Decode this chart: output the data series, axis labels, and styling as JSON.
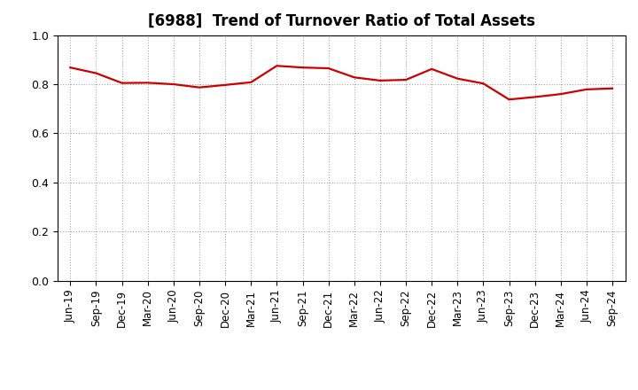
{
  "title": "[6988]  Trend of Turnover Ratio of Total Assets",
  "x_labels": [
    "Jun-19",
    "Sep-19",
    "Dec-19",
    "Mar-20",
    "Jun-20",
    "Sep-20",
    "Dec-20",
    "Mar-21",
    "Jun-21",
    "Sep-21",
    "Dec-21",
    "Mar-22",
    "Jun-22",
    "Sep-22",
    "Dec-22",
    "Mar-23",
    "Jun-23",
    "Sep-23",
    "Dec-23",
    "Mar-24",
    "Jun-24",
    "Sep-24"
  ],
  "y_values": [
    0.868,
    0.845,
    0.805,
    0.806,
    0.8,
    0.787,
    0.797,
    0.808,
    0.875,
    0.868,
    0.865,
    0.828,
    0.815,
    0.818,
    0.862,
    0.823,
    0.803,
    0.738,
    0.748,
    0.76,
    0.779,
    0.783
  ],
  "line_color": "#cc0000",
  "line_width": 1.6,
  "ylim": [
    0.0,
    1.0
  ],
  "yticks": [
    0.0,
    0.2,
    0.4,
    0.6,
    0.8,
    1.0
  ],
  "background_color": "#ffffff",
  "grid_color": "#999999",
  "title_fontsize": 12,
  "tick_fontsize": 8.5
}
